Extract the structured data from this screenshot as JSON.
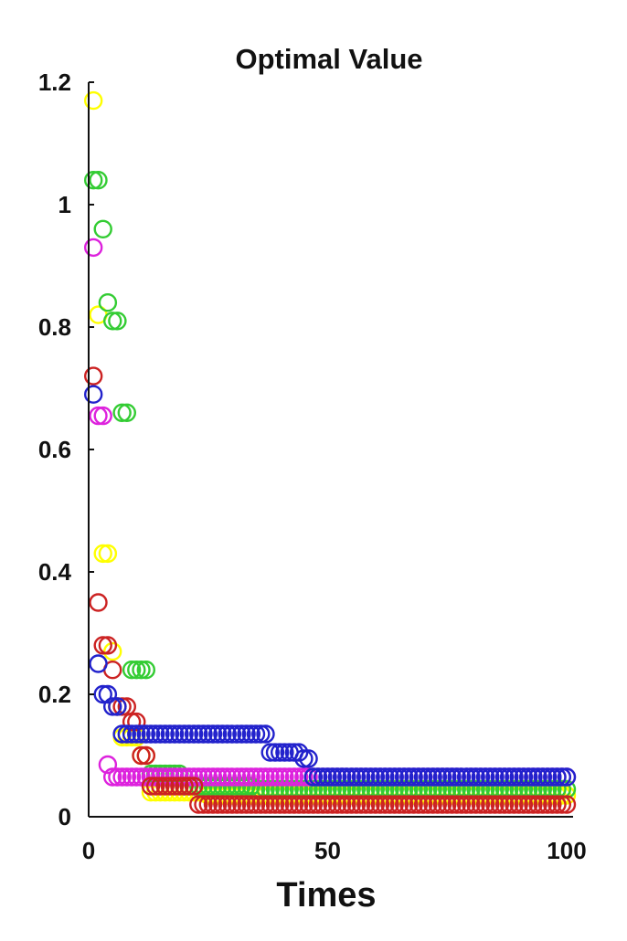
{
  "chart_data": {
    "type": "scatter",
    "title": "Optimal Value",
    "xlabel": "Times",
    "ylabel": "",
    "xlim": [
      0,
      100
    ],
    "ylim": [
      0,
      1.2
    ],
    "x_ticks": [
      "0",
      "50",
      "100"
    ],
    "y_ticks": [
      "0",
      "0.2",
      "0.4",
      "0.6",
      "0.8",
      "1",
      "1.2"
    ],
    "grid": false,
    "legend": "none",
    "marker": "open-circle",
    "series": [
      {
        "color": "#ffff00",
        "segments": [
          {
            "from": 1,
            "to": 1,
            "y": 1.17
          },
          {
            "from": 2,
            "to": 2,
            "y": 0.82
          },
          {
            "from": 3,
            "to": 4,
            "y": 0.43
          },
          {
            "from": 5,
            "to": 5,
            "y": 0.27
          },
          {
            "from": 6,
            "to": 6,
            "y": 0.18
          },
          {
            "from": 7,
            "to": 10,
            "y": 0.13
          },
          {
            "from": 11,
            "to": 12,
            "y": 0.1
          },
          {
            "from": 13,
            "to": 24,
            "y": 0.04
          },
          {
            "from": 25,
            "to": 100,
            "y": 0.035
          }
        ]
      },
      {
        "color": "#33cc33",
        "segments": [
          {
            "from": 1,
            "to": 2,
            "y": 1.04
          },
          {
            "from": 3,
            "to": 3,
            "y": 0.96
          },
          {
            "from": 4,
            "to": 4,
            "y": 0.84
          },
          {
            "from": 5,
            "to": 6,
            "y": 0.81
          },
          {
            "from": 7,
            "to": 8,
            "y": 0.66
          },
          {
            "from": 9,
            "to": 12,
            "y": 0.24
          },
          {
            "from": 13,
            "to": 19,
            "y": 0.07
          },
          {
            "from": 20,
            "to": 34,
            "y": 0.05
          },
          {
            "from": 35,
            "to": 100,
            "y": 0.045
          }
        ]
      },
      {
        "color": "#dd22dd",
        "segments": [
          {
            "from": 1,
            "to": 1,
            "y": 0.93
          },
          {
            "from": 2,
            "to": 3,
            "y": 0.655
          },
          {
            "from": 4,
            "to": 4,
            "y": 0.085
          },
          {
            "from": 5,
            "to": 100,
            "y": 0.065
          }
        ]
      },
      {
        "color": "#cc2222",
        "segments": [
          {
            "from": 1,
            "to": 1,
            "y": 0.72
          },
          {
            "from": 2,
            "to": 2,
            "y": 0.35
          },
          {
            "from": 3,
            "to": 4,
            "y": 0.28
          },
          {
            "from": 5,
            "to": 5,
            "y": 0.24
          },
          {
            "from": 6,
            "to": 8,
            "y": 0.18
          },
          {
            "from": 9,
            "to": 10,
            "y": 0.155
          },
          {
            "from": 11,
            "to": 12,
            "y": 0.1
          },
          {
            "from": 13,
            "to": 22,
            "y": 0.05
          },
          {
            "from": 23,
            "to": 100,
            "y": 0.02
          }
        ]
      },
      {
        "color": "#2222cc",
        "segments": [
          {
            "from": 1,
            "to": 1,
            "y": 0.69
          },
          {
            "from": 2,
            "to": 2,
            "y": 0.25
          },
          {
            "from": 3,
            "to": 4,
            "y": 0.2
          },
          {
            "from": 5,
            "to": 6,
            "y": 0.18
          },
          {
            "from": 7,
            "to": 37,
            "y": 0.135
          },
          {
            "from": 38,
            "to": 44,
            "y": 0.105
          },
          {
            "from": 45,
            "to": 46,
            "y": 0.095
          },
          {
            "from": 47,
            "to": 100,
            "y": 0.065
          }
        ]
      }
    ]
  }
}
